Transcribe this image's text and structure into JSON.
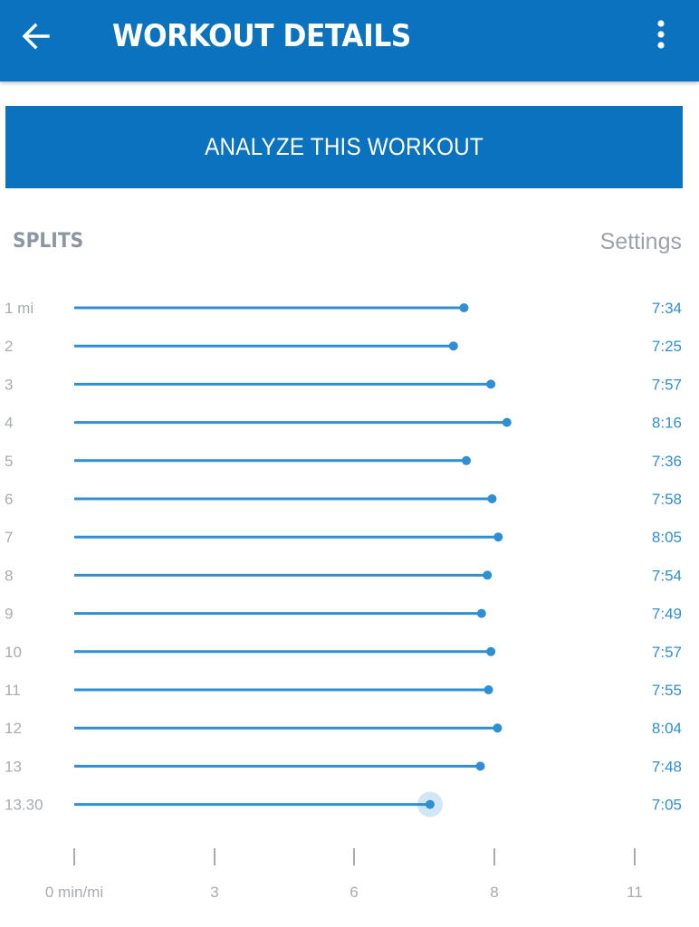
{
  "header": {
    "title": "WORKOUT DETAILS",
    "back_icon": "arrow-left-icon",
    "menu_icon": "more-vertical-icon",
    "background_color": "#0a72bf"
  },
  "analyze_button": {
    "label": "ANALYZE THIS WORKOUT"
  },
  "splits": {
    "title": "SPLITS",
    "settings_label": "Settings"
  },
  "chart_data": {
    "type": "bar",
    "orientation": "horizontal",
    "categories": [
      "1 mi",
      "2",
      "3",
      "4",
      "5",
      "6",
      "7",
      "8",
      "9",
      "10",
      "11",
      "12",
      "13",
      "13.30"
    ],
    "values": [
      7.567,
      7.417,
      7.95,
      8.267,
      7.6,
      7.967,
      8.083,
      7.9,
      7.817,
      7.95,
      7.917,
      8.067,
      7.8,
      7.083
    ],
    "value_labels": [
      "7:34",
      "7:25",
      "7:57",
      "8:16",
      "7:36",
      "7:58",
      "8:05",
      "7:54",
      "7:49",
      "7:57",
      "7:55",
      "8:04",
      "7:48",
      "7:05"
    ],
    "x_ticks": [
      0,
      3,
      6,
      8,
      11
    ],
    "x_tick_labels": [
      "0 min/mi",
      "3",
      "6",
      "8",
      "11"
    ],
    "highlighted_index": 13,
    "bar_color": "#2f8fd4",
    "value_color": "#2f8fd4"
  }
}
